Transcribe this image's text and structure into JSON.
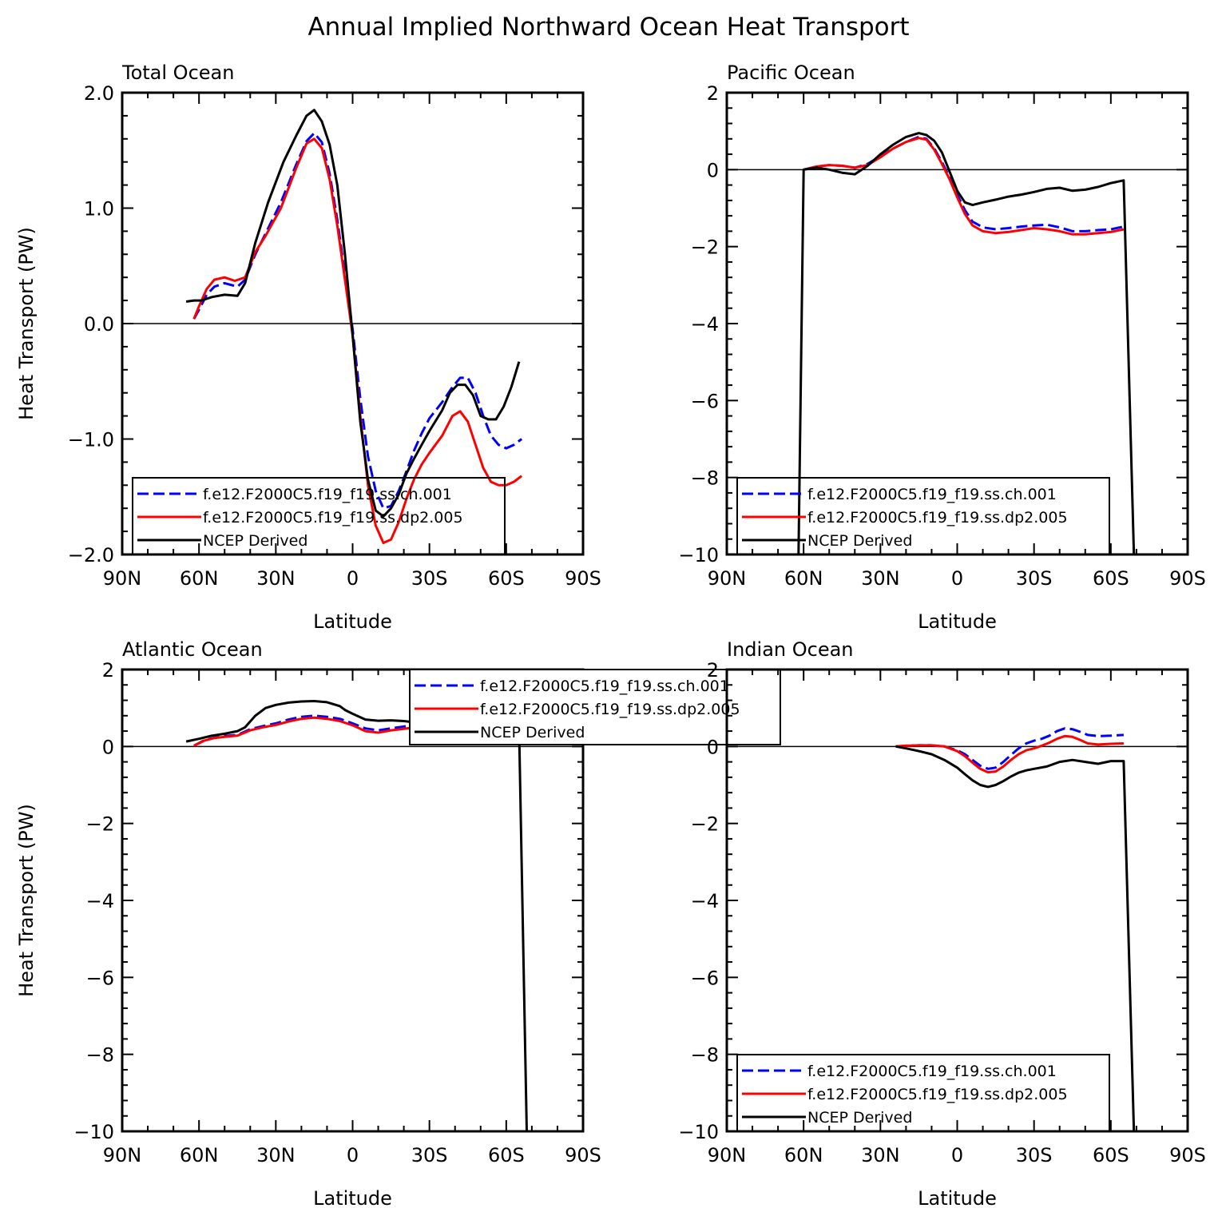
{
  "figure": {
    "title": "Annual Implied Northward Ocean Heat Transport"
  },
  "legend_labels": [
    "f.e12.F2000C5.f19_f19.ss.ch.001",
    "f.e12.F2000C5.f19_f19.ss.dp2.005",
    "NCEP Derived"
  ],
  "colors": {
    "ch001": "#0000ff",
    "dp2005": "#ff0000",
    "ncep": "#000000"
  },
  "chart_data": [
    {
      "type": "line",
      "title": "Total Ocean",
      "xlabel": "Latitude",
      "ylabel": "Heat Transport (PW)",
      "xlim": [
        90,
        -90
      ],
      "ylim": [
        -2.0,
        2.0
      ],
      "x_ticks": [
        90,
        60,
        30,
        0,
        -30,
        -60,
        -90
      ],
      "x_tick_labels": [
        "90N",
        "60N",
        "30N",
        "0",
        "30S",
        "60S",
        "90S"
      ],
      "y_ticks": [
        2.0,
        1.0,
        0.0,
        -1.0,
        -2.0
      ],
      "y_tick_labels": [
        "2.0",
        "1.0",
        "0.0",
        "−1.0",
        "−2.0"
      ],
      "legend_position": "bottom-left",
      "series": [
        {
          "name": "f.e12.F2000C5.f19_f19.ss.ch.001",
          "style": "dashed",
          "color": "#0000ff",
          "x": [
            62,
            60,
            57,
            54,
            50,
            45,
            42,
            38,
            34,
            28,
            22,
            18,
            15,
            12,
            9,
            6,
            3,
            0,
            -3,
            -6,
            -9,
            -12,
            -15,
            -18,
            -21,
            -24,
            -27,
            -30,
            -35,
            -39,
            -42,
            -45,
            -48,
            -51,
            -54,
            -57,
            -60,
            -63,
            -66
          ],
          "y": [
            0.04,
            0.12,
            0.25,
            0.32,
            0.35,
            0.32,
            0.38,
            0.6,
            0.78,
            1.05,
            1.38,
            1.58,
            1.65,
            1.57,
            1.3,
            0.9,
            0.42,
            -0.05,
            -0.65,
            -1.15,
            -1.45,
            -1.6,
            -1.58,
            -1.45,
            -1.28,
            -1.1,
            -0.95,
            -0.82,
            -0.68,
            -0.55,
            -0.47,
            -0.47,
            -0.6,
            -0.8,
            -0.97,
            -1.05,
            -1.08,
            -1.05,
            -1.0
          ]
        },
        {
          "name": "f.e12.F2000C5.f19_f19.ss.dp2.005",
          "style": "solid",
          "color": "#ff0000",
          "x": [
            62,
            60,
            57,
            54,
            50,
            46,
            42,
            38,
            34,
            28,
            22,
            18,
            15,
            12,
            9,
            6,
            3,
            0,
            -3,
            -6,
            -9,
            -12,
            -15,
            -18,
            -21,
            -24,
            -27,
            -30,
            -35,
            -39,
            -42,
            -45,
            -48,
            -51,
            -54,
            -57,
            -60,
            -63,
            -66
          ],
          "y": [
            0.04,
            0.15,
            0.3,
            0.38,
            0.4,
            0.37,
            0.4,
            0.62,
            0.76,
            1.0,
            1.35,
            1.56,
            1.6,
            1.52,
            1.25,
            0.85,
            0.38,
            -0.1,
            -0.8,
            -1.4,
            -1.75,
            -1.9,
            -1.87,
            -1.72,
            -1.52,
            -1.35,
            -1.22,
            -1.12,
            -0.97,
            -0.8,
            -0.76,
            -0.85,
            -1.05,
            -1.25,
            -1.37,
            -1.4,
            -1.4,
            -1.37,
            -1.32
          ]
        },
        {
          "name": "NCEP Derived",
          "style": "solid",
          "color": "#000000",
          "x": [
            65,
            62,
            59,
            55,
            50,
            45,
            42,
            38,
            33,
            27,
            22,
            18,
            15,
            12,
            9,
            6,
            3,
            0,
            -3,
            -6,
            -9,
            -12,
            -15,
            -18,
            -21,
            -24,
            -27,
            -30,
            -35,
            -38,
            -41,
            -44,
            -47,
            -50,
            -53,
            -56,
            -59,
            -62,
            -65
          ],
          "y": [
            0.19,
            0.2,
            0.2,
            0.23,
            0.25,
            0.24,
            0.35,
            0.7,
            1.05,
            1.4,
            1.63,
            1.8,
            1.85,
            1.75,
            1.55,
            1.2,
            0.6,
            -0.1,
            -0.85,
            -1.35,
            -1.62,
            -1.67,
            -1.6,
            -1.48,
            -1.3,
            -1.17,
            -1.05,
            -0.93,
            -0.75,
            -0.6,
            -0.53,
            -0.53,
            -0.62,
            -0.8,
            -0.83,
            -0.83,
            -0.72,
            -0.55,
            -0.33
          ]
        }
      ]
    },
    {
      "type": "line",
      "title": "Pacific Ocean",
      "xlabel": "Latitude",
      "ylabel": "",
      "xlim": [
        90,
        -90
      ],
      "ylim": [
        -10,
        2
      ],
      "x_ticks": [
        90,
        60,
        30,
        0,
        -30,
        -60,
        -90
      ],
      "x_tick_labels": [
        "90N",
        "60N",
        "30N",
        "0",
        "30S",
        "60S",
        "90S"
      ],
      "y_ticks": [
        2,
        0,
        -2,
        -4,
        -6,
        -8,
        -10
      ],
      "y_tick_labels": [
        "2",
        "0",
        "−2",
        "−4",
        "−6",
        "−8",
        "−10"
      ],
      "legend_position": "bottom-left",
      "series": [
        {
          "name": "f.e12.F2000C5.f19_f19.ss.ch.001",
          "style": "dashed",
          "color": "#0000ff",
          "x": [
            60,
            55,
            50,
            45,
            40,
            35,
            30,
            25,
            20,
            15,
            12,
            9,
            6,
            3,
            0,
            -3,
            -6,
            -10,
            -15,
            -20,
            -25,
            -30,
            -35,
            -40,
            -45,
            -50,
            -55,
            -60,
            -65
          ],
          "y": [
            0.0,
            0.08,
            0.12,
            0.1,
            0.05,
            0.15,
            0.35,
            0.55,
            0.72,
            0.85,
            0.8,
            0.55,
            0.2,
            -0.2,
            -0.65,
            -1.05,
            -1.35,
            -1.5,
            -1.55,
            -1.52,
            -1.48,
            -1.45,
            -1.43,
            -1.5,
            -1.6,
            -1.6,
            -1.57,
            -1.55,
            -1.48
          ]
        },
        {
          "name": "f.e12.F2000C5.f19_f19.ss.dp2.005",
          "style": "solid",
          "color": "#ff0000",
          "x": [
            60,
            55,
            50,
            45,
            40,
            35,
            30,
            25,
            20,
            15,
            12,
            9,
            6,
            3,
            0,
            -3,
            -6,
            -10,
            -15,
            -20,
            -25,
            -30,
            -35,
            -40,
            -45,
            -50,
            -55,
            -60,
            -65
          ],
          "y": [
            0.0,
            0.08,
            0.12,
            0.1,
            0.05,
            0.12,
            0.32,
            0.55,
            0.72,
            0.82,
            0.78,
            0.52,
            0.15,
            -0.25,
            -0.72,
            -1.15,
            -1.45,
            -1.6,
            -1.65,
            -1.62,
            -1.57,
            -1.52,
            -1.55,
            -1.6,
            -1.68,
            -1.68,
            -1.65,
            -1.62,
            -1.55
          ]
        },
        {
          "name": "NCEP Derived",
          "style": "solid",
          "color": "#000000",
          "x": [
            62,
            60,
            55,
            50,
            45,
            40,
            35,
            30,
            25,
            20,
            15,
            12,
            9,
            6,
            3,
            0,
            -3,
            -6,
            -10,
            -15,
            -20,
            -25,
            -30,
            -35,
            -40,
            -45,
            -50,
            -55,
            -60,
            -65,
            -69
          ],
          "y": [
            -10,
            0.0,
            0.05,
            0.0,
            -0.08,
            -0.12,
            0.1,
            0.4,
            0.65,
            0.85,
            0.95,
            0.9,
            0.75,
            0.45,
            -0.05,
            -0.55,
            -0.85,
            -0.92,
            -0.85,
            -0.78,
            -0.7,
            -0.65,
            -0.58,
            -0.5,
            -0.47,
            -0.55,
            -0.52,
            -0.45,
            -0.35,
            -0.28,
            -10
          ]
        }
      ]
    },
    {
      "type": "line",
      "title": "Atlantic Ocean",
      "xlabel": "Latitude",
      "ylabel": "Heat Transport (PW)",
      "xlim": [
        90,
        -90
      ],
      "ylim": [
        -10,
        2
      ],
      "x_ticks": [
        90,
        60,
        30,
        0,
        -30,
        -60,
        -90
      ],
      "x_tick_labels": [
        "90N",
        "60N",
        "30N",
        "0",
        "30S",
        "60S",
        "90S"
      ],
      "y_ticks": [
        2,
        0,
        -2,
        -4,
        -6,
        -8,
        -10
      ],
      "y_tick_labels": [
        "2",
        "0",
        "−2",
        "−4",
        "−6",
        "−8",
        "−10"
      ],
      "legend_position": "top-right",
      "series": [
        {
          "name": "f.e12.F2000C5.f19_f19.ss.ch.001",
          "style": "dashed",
          "color": "#0000ff",
          "x": [
            62,
            58,
            54,
            50,
            45,
            40,
            35,
            30,
            25,
            20,
            15,
            10,
            5,
            0,
            -5,
            -10,
            -15,
            -20,
            -25,
            -30,
            -35,
            -40,
            -45,
            -50,
            -55,
            -60,
            -65
          ],
          "y": [
            0.02,
            0.16,
            0.23,
            0.27,
            0.3,
            0.45,
            0.53,
            0.6,
            0.7,
            0.77,
            0.8,
            0.77,
            0.72,
            0.6,
            0.47,
            0.42,
            0.47,
            0.52,
            0.55,
            0.55,
            0.55,
            0.57,
            0.62,
            0.58,
            0.4,
            0.25,
            0.22
          ]
        },
        {
          "name": "f.e12.F2000C5.f19_f19.ss.dp2.005",
          "style": "solid",
          "color": "#ff0000",
          "x": [
            62,
            58,
            54,
            50,
            45,
            40,
            35,
            30,
            25,
            20,
            15,
            10,
            5,
            0,
            -5,
            -10,
            -15,
            -20,
            -25,
            -30,
            -35,
            -40,
            -45,
            -50,
            -55,
            -60,
            -65
          ],
          "y": [
            0.02,
            0.15,
            0.22,
            0.25,
            0.28,
            0.42,
            0.5,
            0.56,
            0.65,
            0.72,
            0.75,
            0.72,
            0.66,
            0.55,
            0.4,
            0.36,
            0.42,
            0.46,
            0.5,
            0.5,
            0.5,
            0.53,
            0.57,
            0.5,
            0.32,
            0.2,
            0.18
          ]
        },
        {
          "name": "NCEP Derived",
          "style": "solid",
          "color": "#000000",
          "x": [
            65,
            60,
            55,
            50,
            45,
            42,
            38,
            34,
            30,
            25,
            20,
            15,
            10,
            5,
            3,
            0,
            -5,
            -10,
            -15,
            -20,
            -25,
            -30,
            -35,
            -40,
            -45,
            -50,
            -55,
            -60,
            -65,
            -68
          ],
          "y": [
            0.13,
            0.2,
            0.28,
            0.33,
            0.4,
            0.5,
            0.8,
            1.0,
            1.08,
            1.14,
            1.17,
            1.18,
            1.15,
            1.05,
            0.95,
            0.85,
            0.7,
            0.67,
            0.68,
            0.66,
            0.62,
            0.58,
            0.58,
            0.6,
            0.65,
            0.68,
            0.65,
            0.55,
            0.5,
            -10
          ]
        }
      ]
    },
    {
      "type": "line",
      "title": "Indian Ocean",
      "xlabel": "Latitude",
      "ylabel": "",
      "xlim": [
        90,
        -90
      ],
      "ylim": [
        -10,
        2
      ],
      "x_ticks": [
        90,
        60,
        30,
        0,
        -30,
        -60,
        -90
      ],
      "x_tick_labels": [
        "90N",
        "60N",
        "30N",
        "0",
        "30S",
        "60S",
        "90S"
      ],
      "y_ticks": [
        2,
        0,
        -2,
        -4,
        -6,
        -8,
        -10
      ],
      "y_tick_labels": [
        "2",
        "0",
        "−2",
        "−4",
        "−6",
        "−8",
        "−10"
      ],
      "legend_position": "bottom-left",
      "series": [
        {
          "name": "f.e12.F2000C5.f19_f19.ss.ch.001",
          "style": "dashed",
          "color": "#0000ff",
          "x": [
            24,
            20,
            15,
            10,
            5,
            0,
            -3,
            -6,
            -9,
            -12,
            -15,
            -18,
            -21,
            -24,
            -27,
            -30,
            -33,
            -36,
            -39,
            -42,
            -45,
            -48,
            -51,
            -55,
            -60,
            -65
          ],
          "y": [
            0.0,
            0.02,
            0.03,
            0.03,
            0.0,
            -0.1,
            -0.2,
            -0.35,
            -0.5,
            -0.58,
            -0.55,
            -0.4,
            -0.22,
            -0.05,
            0.08,
            0.15,
            0.2,
            0.28,
            0.4,
            0.47,
            0.45,
            0.38,
            0.3,
            0.27,
            0.28,
            0.3
          ]
        },
        {
          "name": "f.e12.F2000C5.f19_f19.ss.dp2.005",
          "style": "solid",
          "color": "#ff0000",
          "x": [
            24,
            20,
            15,
            10,
            5,
            0,
            -3,
            -6,
            -9,
            -12,
            -15,
            -18,
            -21,
            -24,
            -27,
            -30,
            -33,
            -36,
            -39,
            -42,
            -45,
            -48,
            -51,
            -55,
            -60,
            -65
          ],
          "y": [
            0.0,
            0.02,
            0.03,
            0.03,
            0.0,
            -0.12,
            -0.25,
            -0.42,
            -0.58,
            -0.67,
            -0.65,
            -0.52,
            -0.35,
            -0.2,
            -0.1,
            -0.05,
            0.02,
            0.1,
            0.2,
            0.27,
            0.25,
            0.17,
            0.08,
            0.05,
            0.07,
            0.08
          ]
        },
        {
          "name": "NCEP Derived",
          "style": "solid",
          "color": "#000000",
          "x": [
            24,
            20,
            15,
            10,
            5,
            0,
            -3,
            -6,
            -9,
            -12,
            -15,
            -18,
            -21,
            -24,
            -27,
            -30,
            -35,
            -40,
            -45,
            -50,
            -55,
            -60,
            -65,
            -69
          ],
          "y": [
            0.0,
            -0.05,
            -0.12,
            -0.2,
            -0.35,
            -0.55,
            -0.72,
            -0.88,
            -1.0,
            -1.05,
            -1.0,
            -0.9,
            -0.78,
            -0.68,
            -0.62,
            -0.58,
            -0.52,
            -0.4,
            -0.35,
            -0.4,
            -0.45,
            -0.38,
            -0.38,
            -10
          ]
        }
      ]
    }
  ]
}
